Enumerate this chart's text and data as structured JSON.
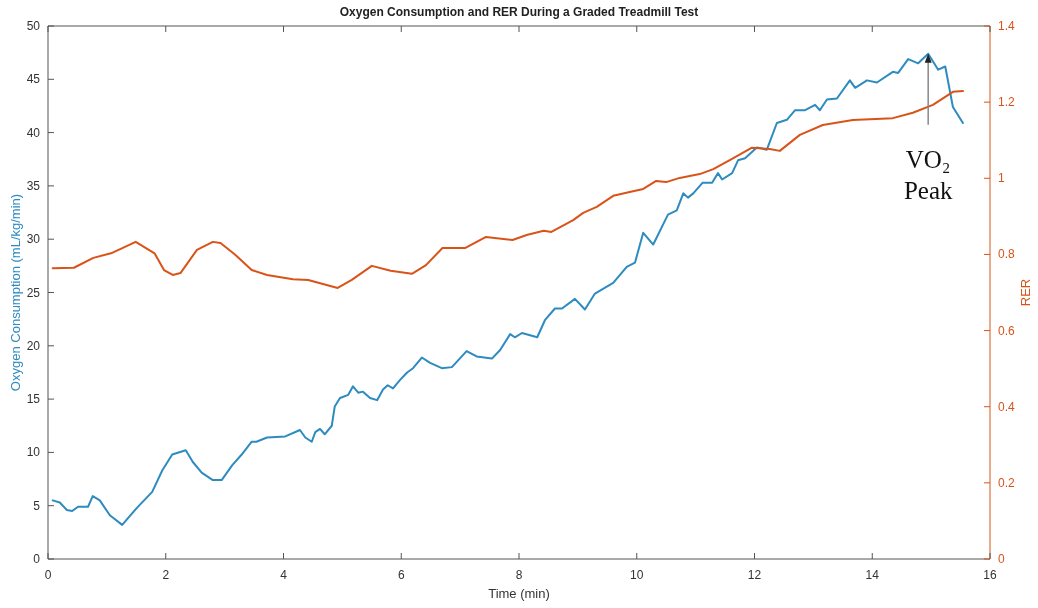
{
  "chart_data": {
    "type": "line",
    "title": "Oxygen Consumption and RER During a Graded Treadmill Test",
    "xlabel": "Time (min)",
    "ylabel": "Oxygen Consumption (mL/kg/min)",
    "y2label": "RER",
    "xlim": [
      0,
      16
    ],
    "xticks": [
      0,
      2,
      4,
      6,
      8,
      10,
      12,
      14,
      16
    ],
    "ylim": [
      0,
      50
    ],
    "yticks": [
      0,
      5,
      10,
      15,
      20,
      25,
      30,
      35,
      40,
      45,
      50
    ],
    "y2lim": [
      0,
      1.4
    ],
    "y2ticks": [
      0,
      0.2,
      0.4,
      0.6,
      0.8,
      1,
      1.2,
      1.4
    ],
    "grid": false,
    "marker": "none",
    "line_style": "solid",
    "annotations": [
      {
        "text": "VO₂ Peak",
        "x": 14.95,
        "y": 47.4
      }
    ],
    "series": [
      {
        "color": "#2e8bc0",
        "x": [
          0.08,
          0.2,
          0.32,
          0.41,
          0.51,
          0.68,
          0.76,
          0.88,
          1.05,
          1.26,
          1.51,
          1.77,
          1.94,
          2.11,
          2.34,
          2.46,
          2.61,
          2.8,
          2.95,
          3.13,
          3.29,
          3.46,
          3.54,
          3.72,
          4.03,
          4.28,
          4.37,
          4.48,
          4.54,
          4.62,
          4.7,
          4.82,
          4.87,
          4.96,
          5.1,
          5.18,
          5.27,
          5.35,
          5.47,
          5.59,
          5.69,
          5.77,
          5.86,
          5.98,
          6.1,
          6.2,
          6.35,
          6.49,
          6.69,
          6.86,
          7.11,
          7.28,
          7.54,
          7.68,
          7.85,
          7.93,
          8.05,
          8.31,
          8.44,
          8.61,
          8.73,
          8.95,
          9.12,
          9.29,
          9.6,
          9.83,
          9.97,
          10.11,
          10.28,
          10.53,
          10.68,
          10.79,
          10.87,
          10.96,
          11.12,
          11.28,
          11.38,
          11.45,
          11.62,
          11.72,
          11.84,
          12.04,
          12.21,
          12.38,
          12.55,
          12.69,
          12.86,
          13.03,
          13.11,
          13.23,
          13.4,
          13.62,
          13.71,
          13.91,
          14.08,
          14.35,
          14.44,
          14.61,
          14.78,
          14.95,
          15.12,
          15.24,
          15.37,
          15.54
        ],
        "values": [
          5.5,
          5.3,
          4.6,
          4.5,
          4.9,
          4.9,
          5.9,
          5.5,
          4.1,
          3.2,
          4.8,
          6.3,
          8.3,
          9.8,
          10.2,
          9.1,
          8.1,
          7.4,
          7.4,
          8.8,
          9.8,
          11.0,
          11.0,
          11.4,
          11.5,
          12.1,
          11.4,
          11.0,
          11.9,
          12.2,
          11.7,
          12.5,
          14.3,
          15.1,
          15.4,
          16.2,
          15.6,
          15.7,
          15.1,
          14.9,
          15.9,
          16.3,
          16.0,
          16.8,
          17.5,
          17.9,
          18.9,
          18.4,
          17.9,
          18.0,
          19.5,
          19.0,
          18.8,
          19.6,
          21.1,
          20.8,
          21.2,
          20.8,
          22.4,
          23.5,
          23.5,
          24.4,
          23.4,
          24.9,
          25.9,
          27.4,
          27.8,
          30.6,
          29.5,
          32.3,
          32.7,
          34.3,
          33.9,
          34.3,
          35.3,
          35.3,
          36.2,
          35.6,
          36.2,
          37.4,
          37.6,
          38.6,
          38.4,
          40.9,
          41.2,
          42.1,
          42.1,
          42.6,
          42.1,
          43.1,
          43.2,
          44.9,
          44.2,
          44.9,
          44.7,
          45.7,
          45.6,
          46.9,
          46.5,
          47.4,
          45.9,
          46.2,
          42.4,
          40.9
        ]
      },
      {
        "color": "#d95319",
        "axis": "y2",
        "x": [
          0.08,
          0.44,
          0.77,
          1.07,
          1.49,
          1.81,
          1.97,
          2.12,
          2.25,
          2.53,
          2.8,
          2.93,
          3.18,
          3.46,
          3.72,
          4.16,
          4.42,
          4.92,
          5.16,
          5.5,
          5.82,
          6.18,
          6.42,
          6.7,
          7.09,
          7.44,
          7.89,
          8.13,
          8.42,
          8.55,
          8.92,
          9.09,
          9.32,
          9.6,
          9.88,
          10.11,
          10.33,
          10.5,
          10.73,
          11.07,
          11.3,
          11.58,
          11.95,
          12.26,
          12.43,
          12.77,
          13.16,
          13.67,
          14.35,
          14.69,
          15.03,
          15.37,
          15.54
        ],
        "values": [
          0.764,
          0.765,
          0.791,
          0.803,
          0.833,
          0.803,
          0.759,
          0.746,
          0.751,
          0.812,
          0.833,
          0.83,
          0.799,
          0.759,
          0.746,
          0.735,
          0.733,
          0.712,
          0.733,
          0.77,
          0.757,
          0.749,
          0.772,
          0.817,
          0.817,
          0.846,
          0.838,
          0.851,
          0.862,
          0.859,
          0.89,
          0.909,
          0.925,
          0.954,
          0.964,
          0.972,
          0.993,
          0.99,
          1.001,
          1.011,
          1.024,
          1.048,
          1.08,
          1.077,
          1.072,
          1.114,
          1.14,
          1.153,
          1.158,
          1.172,
          1.193,
          1.227,
          1.229
        ]
      }
    ]
  }
}
